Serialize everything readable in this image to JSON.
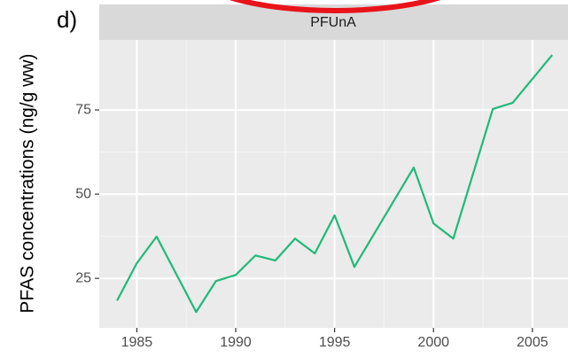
{
  "chart_data": {
    "type": "line",
    "panel_label": "d)",
    "strip": "PFUnA",
    "ylabel": "PFAS concentrations (ng/g ww)",
    "x": [
      1984,
      1985,
      1986,
      1988,
      1989,
      1990,
      1991,
      1992,
      1993,
      1994,
      1995,
      1996,
      1999,
      2000,
      2001,
      2003,
      2004,
      2006
    ],
    "values": [
      18.4,
      29.5,
      37.4,
      15,
      24.2,
      26,
      31.8,
      30.3,
      36.8,
      32.4,
      43.7,
      28.4,
      57.9,
      41.3,
      36.8,
      75.3,
      77.1,
      91.3
    ],
    "color": "#1fb97a",
    "xlim": [
      1983.1,
      2006.8
    ],
    "xticks": [
      1985,
      1990,
      1995,
      2000,
      2005
    ],
    "ylim": [
      10.3,
      95.8
    ],
    "yticks": [
      25,
      50,
      75
    ],
    "grid": true
  }
}
